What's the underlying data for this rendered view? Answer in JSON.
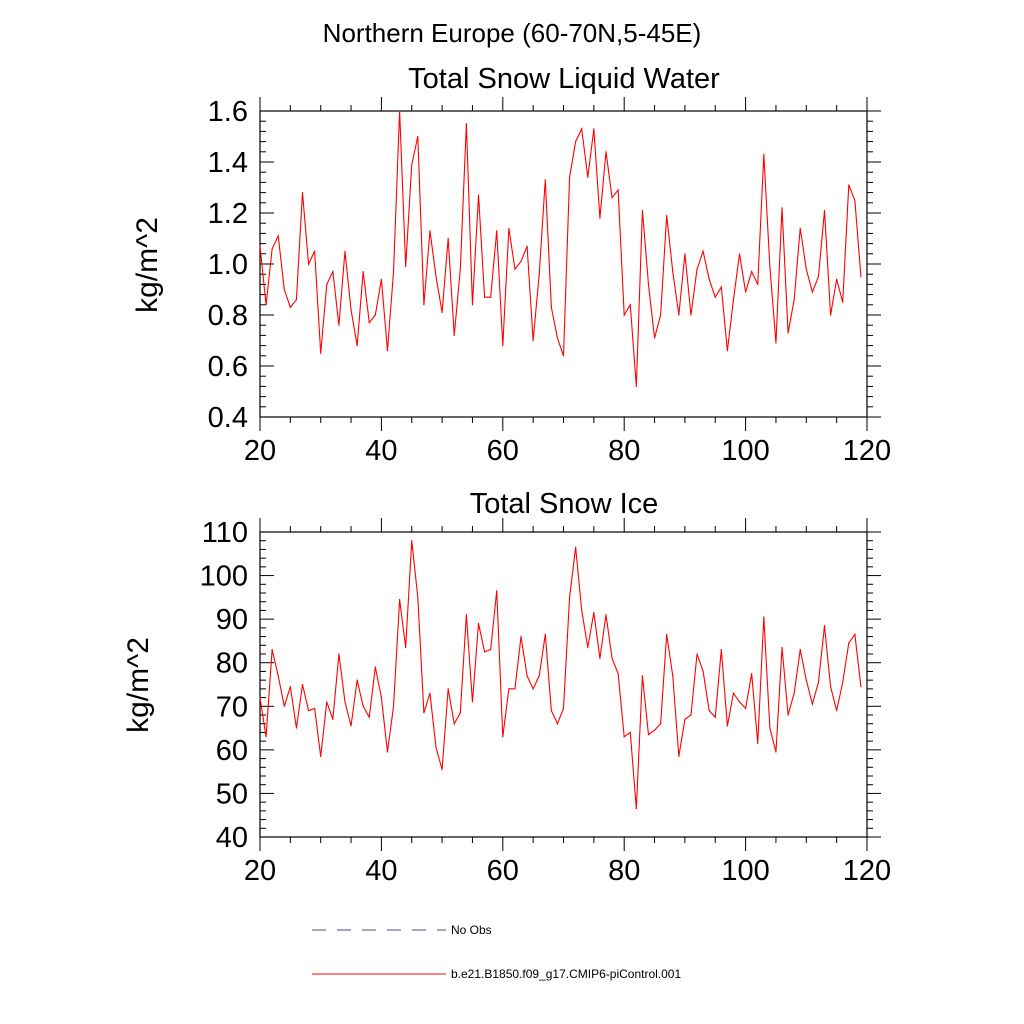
{
  "figure_title": "Northern Europe (60-70N,5-45E)",
  "legend": {
    "placement": "bottom",
    "entries": [
      {
        "label": "No Obs",
        "color": "#4a4a8c",
        "style": "dashed"
      },
      {
        "label": "b.e21.B1850.f09_g17.CMIP6-piControl.001",
        "color": "#ff0000",
        "style": "solid"
      }
    ]
  },
  "chart_data": [
    {
      "type": "line",
      "title": "Total Snow Liquid Water",
      "xlabel": "",
      "ylabel": "kg/m^2",
      "xlim": [
        20,
        120
      ],
      "ylim": [
        0.4,
        1.6
      ],
      "xticks": [
        20,
        40,
        60,
        80,
        100,
        120
      ],
      "yticks": [
        0.4,
        0.6,
        0.8,
        1.0,
        1.2,
        1.4,
        1.6
      ],
      "ytick_labels": [
        "0.4",
        "0.6",
        "0.8",
        "1.0",
        "1.2",
        "1.4",
        "1.6"
      ],
      "grid": false,
      "x_start": 20,
      "series": [
        {
          "name": "b.e21.B1850.f09_g17.CMIP6-piControl.001",
          "color": "#ff0000",
          "values": [
            1.07,
            0.84,
            1.06,
            1.11,
            0.9,
            0.83,
            0.86,
            1.28,
            1.0,
            1.05,
            0.65,
            0.92,
            0.97,
            0.76,
            1.05,
            0.82,
            0.68,
            0.97,
            0.77,
            0.8,
            0.94,
            0.66,
            0.97,
            1.6,
            0.99,
            1.39,
            1.5,
            0.84,
            1.13,
            0.95,
            0.81,
            1.1,
            0.72,
            0.98,
            1.55,
            0.84,
            1.27,
            0.87,
            0.87,
            1.13,
            0.68,
            1.14,
            0.98,
            1.01,
            1.07,
            0.7,
            0.96,
            1.33,
            0.83,
            0.71,
            0.64,
            1.34,
            1.48,
            1.53,
            1.34,
            1.53,
            1.18,
            1.44,
            1.26,
            1.29,
            0.8,
            0.84,
            0.52,
            1.21,
            0.92,
            0.71,
            0.8,
            1.19,
            0.97,
            0.8,
            1.04,
            0.8,
            0.98,
            1.05,
            0.94,
            0.87,
            0.91,
            0.66,
            0.86,
            1.04,
            0.89,
            0.97,
            0.92,
            1.43,
            0.99,
            0.69,
            1.22,
            0.73,
            0.86,
            1.14,
            0.98,
            0.89,
            0.95,
            1.21,
            0.8,
            0.94,
            0.85,
            1.31,
            1.25,
            0.95
          ]
        }
      ]
    },
    {
      "type": "line",
      "title": "Total Snow Ice",
      "xlabel": "",
      "ylabel": "kg/m^2",
      "xlim": [
        20,
        120
      ],
      "ylim": [
        40,
        110
      ],
      "xticks": [
        20,
        40,
        60,
        80,
        100,
        120
      ],
      "yticks": [
        40,
        50,
        60,
        70,
        80,
        90,
        100,
        110
      ],
      "ytick_labels": [
        "40",
        "50",
        "60",
        "70",
        "80",
        "90",
        "100",
        "110"
      ],
      "grid": false,
      "x_start": 20,
      "series": [
        {
          "name": "b.e21.B1850.f09_g17.CMIP6-piControl.001",
          "color": "#ff0000",
          "values": [
            72,
            63,
            83,
            77,
            70,
            74.5,
            65,
            75,
            69,
            69.5,
            58.5,
            71,
            67,
            82,
            71,
            65.5,
            76,
            70,
            67.5,
            79,
            72,
            59.5,
            70,
            94.5,
            83.5,
            108,
            95,
            68.5,
            73,
            60.5,
            55.5,
            74,
            66,
            68.5,
            91,
            71,
            89,
            82.5,
            83,
            96.5,
            63,
            74,
            74,
            86,
            77,
            74,
            77,
            86.5,
            69,
            66,
            69.5,
            95,
            106.5,
            92,
            83.5,
            91.5,
            81,
            91,
            81,
            77.5,
            63,
            64,
            46.5,
            77,
            63.5,
            64.5,
            66,
            86.5,
            77,
            58.5,
            67,
            68,
            82,
            78,
            69,
            67.5,
            83,
            65.5,
            73,
            71,
            69.5,
            77.5,
            61.5,
            90.5,
            65,
            59.5,
            83.5,
            68,
            73,
            83,
            76,
            70.5,
            75.5,
            88.5,
            74.5,
            69,
            75.5,
            84.5,
            86.5,
            74.5
          ]
        }
      ]
    }
  ]
}
